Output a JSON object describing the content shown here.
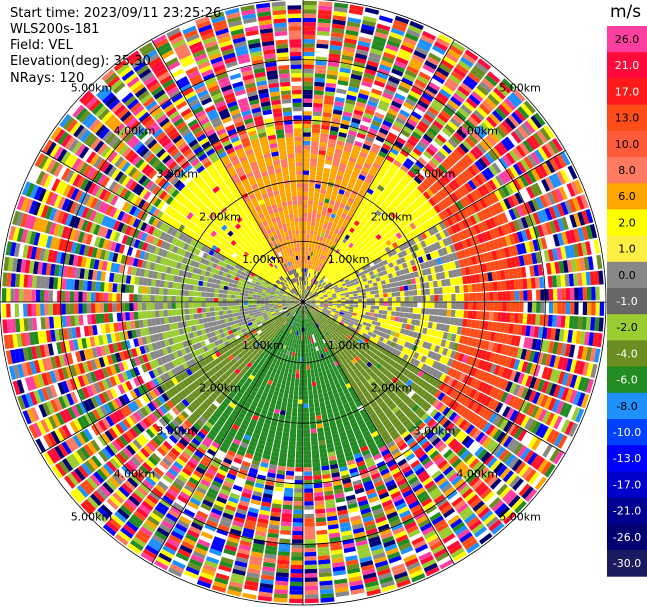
{
  "header": {
    "start_time": "Start time: 2023/09/11 23:25:26",
    "instrument": "WLS200s-181",
    "field": "Field: VEL",
    "elevation": "Elevation(deg): 35.30",
    "nrays": "NRays: 120"
  },
  "chart_data": {
    "type": "heatmap",
    "projection": "polar-ppi",
    "nrays": 120,
    "field": "VEL",
    "range_rings": [
      {
        "km": 1.0,
        "label": "1.00km"
      },
      {
        "km": 2.0,
        "label": "2.00km"
      },
      {
        "km": 3.0,
        "label": "3.00km"
      },
      {
        "km": 4.0,
        "label": "4.00km"
      },
      {
        "km": 5.0,
        "label": "5.00km"
      }
    ],
    "max_range_km": 5.0,
    "spokes_deg": [
      0,
      30,
      60,
      90,
      120,
      150,
      180,
      210,
      240,
      270,
      300,
      330
    ],
    "velocity_regions": [
      {
        "sector": "north",
        "range_km": [
          0.8,
          2.4
        ],
        "approx_ms": 6
      },
      {
        "sector": "north-east",
        "range_km": [
          0.5,
          2.4
        ],
        "approx_ms": 2
      },
      {
        "sector": "east",
        "range_km": [
          2.8,
          4.8
        ],
        "approx_ms": 12
      },
      {
        "sector": "south",
        "range_km": [
          0.3,
          2.6
        ],
        "approx_ms": -6
      },
      {
        "sector": "west",
        "range_km": [
          0.3,
          2.0
        ],
        "approx_ms": -1
      },
      {
        "sector": "outer",
        "range_km": [
          3.5,
          5.0
        ],
        "approx_ms": "noise"
      }
    ],
    "colorbar": {
      "unit": "m/s",
      "ticks": [
        "26.0",
        "21.0",
        "17.0",
        "13.0",
        "10.0",
        "8.0",
        "6.0",
        "2.0",
        "1.0",
        "0.0",
        "-1.0",
        "-2.0",
        "-4.0",
        "-6.0",
        "-8.0",
        "-10.0",
        "-13.0",
        "-17.0",
        "-21.0",
        "-26.0",
        "-30.0"
      ],
      "colors": [
        "#ff3f9f",
        "#ff0a3a",
        "#ff1a1a",
        "#ff4d1a",
        "#ff5a3a",
        "#ff7a60",
        "#ffa500",
        "#ffff00",
        "#ffee44",
        "#888888",
        "#666666",
        "#9acd32",
        "#6b8e23",
        "#228b22",
        "#1e90ff",
        "#0040ff",
        "#0000ff",
        "#0000cc",
        "#000090",
        "#000070",
        "#1a1a60"
      ]
    }
  }
}
